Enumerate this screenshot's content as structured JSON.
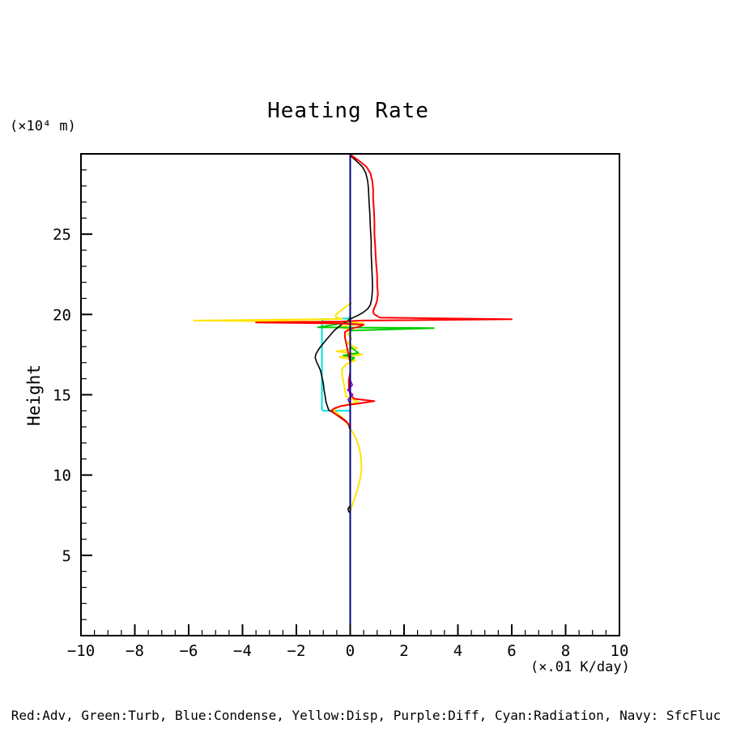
{
  "labels": {
    "title": "Heating Rate",
    "y_unit": "(×10⁴ m)",
    "x_unit": "(×.01 K/day)",
    "ylabel": "Height",
    "legend": "Red:Adv, Green:Turb, Blue:Condense, Yellow:Disp, Purple:Diff, Cyan:Radiation, Navy: SfcFluc"
  },
  "chart_data": {
    "type": "line",
    "title": "Heating Rate",
    "xlabel": "(×.01 K/day)",
    "ylabel": "Height",
    "y_unit": "(×10⁴ m)",
    "xlim": [
      -10,
      10
    ],
    "ylim": [
      0,
      30
    ],
    "x_ticks": [
      -10,
      -8,
      -6,
      -4,
      -2,
      0,
      2,
      4,
      6,
      8,
      10
    ],
    "y_ticks": [
      5,
      10,
      15,
      20,
      25
    ],
    "x_minor_step": 0.5,
    "y_minor_step": 1,
    "grid": false,
    "orientation": "vertical-profile (x = heating rate value, y = height)",
    "legend_position": "bottom-text-line",
    "series": [
      {
        "name": "Radiation",
        "color": "#00e0e0",
        "width": 2,
        "points": [
          [
            0.0,
            19.75
          ],
          [
            -1.0,
            19.7
          ],
          [
            -1.05,
            19.6
          ],
          [
            -1.05,
            14.1
          ],
          [
            -1.0,
            14.0
          ],
          [
            0.0,
            14.0
          ]
        ]
      },
      {
        "name": "Disp",
        "color": "#ffe400",
        "width": 2,
        "points": [
          [
            0.05,
            20.7
          ],
          [
            -0.15,
            20.5
          ],
          [
            -0.3,
            20.3
          ],
          [
            -0.45,
            20.1
          ],
          [
            -0.55,
            19.95
          ],
          [
            -0.5,
            19.82
          ],
          [
            -0.3,
            19.72
          ],
          [
            -5.8,
            19.62
          ],
          [
            -0.3,
            19.55
          ],
          [
            0.5,
            19.45
          ],
          [
            0.1,
            19.35
          ],
          [
            -0.45,
            19.22
          ],
          [
            0.1,
            19.05
          ],
          [
            -0.1,
            18.8
          ],
          [
            0.05,
            18.5
          ],
          [
            -0.1,
            18.2
          ],
          [
            0.25,
            17.9
          ],
          [
            -0.5,
            17.7
          ],
          [
            0.45,
            17.5
          ],
          [
            -0.4,
            17.35
          ],
          [
            0.2,
            17.15
          ],
          [
            -0.15,
            16.9
          ],
          [
            -0.3,
            16.6
          ],
          [
            -0.3,
            16.2
          ],
          [
            -0.25,
            15.8
          ],
          [
            -0.2,
            15.3
          ],
          [
            -0.15,
            14.9
          ],
          [
            0.1,
            14.7
          ],
          [
            0.3,
            14.55
          ],
          [
            -0.1,
            14.4
          ],
          [
            -0.5,
            14.2
          ],
          [
            -0.6,
            14.0
          ],
          [
            -0.45,
            13.8
          ],
          [
            -0.25,
            13.5
          ],
          [
            -0.1,
            13.2
          ],
          [
            0.0,
            12.9
          ],
          [
            0.15,
            12.5
          ],
          [
            0.28,
            12.0
          ],
          [
            0.36,
            11.5
          ],
          [
            0.4,
            11.0
          ],
          [
            0.42,
            10.5
          ],
          [
            0.4,
            10.0
          ],
          [
            0.33,
            9.5
          ],
          [
            0.25,
            9.0
          ],
          [
            0.15,
            8.5
          ],
          [
            0.05,
            8.0
          ],
          [
            0.0,
            7.7
          ]
        ]
      },
      {
        "name": "Turb",
        "color": "#00cc00",
        "width": 2,
        "points": [
          [
            0.0,
            19.9
          ],
          [
            -0.1,
            19.5
          ],
          [
            -1.2,
            19.2
          ],
          [
            3.1,
            19.15
          ],
          [
            0.0,
            19.0
          ],
          [
            0.0,
            18.0
          ],
          [
            0.3,
            17.6
          ],
          [
            -0.25,
            17.45
          ],
          [
            0.15,
            17.3
          ],
          [
            0.0,
            17.1
          ],
          [
            0.0,
            16.5
          ]
        ]
      },
      {
        "name": "Unlabeled-Black",
        "color": "#000000",
        "width": 1.6,
        "points": [
          [
            0.0,
            29.9
          ],
          [
            0.2,
            29.6
          ],
          [
            0.45,
            29.2
          ],
          [
            0.58,
            28.8
          ],
          [
            0.65,
            28.3
          ],
          [
            0.68,
            27.8
          ],
          [
            0.7,
            27.0
          ],
          [
            0.73,
            26.2
          ],
          [
            0.75,
            25.4
          ],
          [
            0.78,
            24.6
          ],
          [
            0.78,
            23.8
          ],
          [
            0.8,
            23.0
          ],
          [
            0.82,
            22.2
          ],
          [
            0.83,
            21.6
          ],
          [
            0.8,
            21.0
          ],
          [
            0.75,
            20.6
          ],
          [
            0.65,
            20.35
          ],
          [
            0.5,
            20.15
          ],
          [
            0.3,
            19.95
          ],
          [
            0.1,
            19.8
          ],
          [
            -0.1,
            19.6
          ],
          [
            -0.3,
            19.4
          ],
          [
            -0.45,
            19.2
          ],
          [
            -0.6,
            19.0
          ],
          [
            -0.72,
            18.75
          ],
          [
            -0.85,
            18.5
          ],
          [
            -1.0,
            18.2
          ],
          [
            -1.12,
            17.95
          ],
          [
            -1.2,
            17.75
          ],
          [
            -1.28,
            17.5
          ],
          [
            -1.3,
            17.3
          ],
          [
            -1.25,
            17.05
          ],
          [
            -1.18,
            16.8
          ],
          [
            -1.1,
            16.5
          ],
          [
            -1.05,
            16.1
          ],
          [
            -1.0,
            15.7
          ],
          [
            -0.97,
            15.3
          ],
          [
            -0.93,
            14.9
          ],
          [
            -0.9,
            14.55
          ],
          [
            -0.85,
            14.3
          ],
          [
            -0.8,
            14.05
          ],
          [
            -0.6,
            13.85
          ],
          [
            -0.35,
            13.6
          ],
          [
            -0.15,
            13.35
          ],
          [
            -0.05,
            13.1
          ],
          [
            0.0,
            12.8
          ],
          [
            0.0,
            8.1
          ],
          [
            -0.08,
            7.9
          ],
          [
            -0.05,
            7.7
          ]
        ]
      },
      {
        "name": "Adv",
        "color": "#ff0000",
        "width": 2,
        "points": [
          [
            0.05,
            29.9
          ],
          [
            0.3,
            29.6
          ],
          [
            0.6,
            29.2
          ],
          [
            0.75,
            28.8
          ],
          [
            0.82,
            28.3
          ],
          [
            0.85,
            27.8
          ],
          [
            0.85,
            27.2
          ],
          [
            0.88,
            26.5
          ],
          [
            0.9,
            25.8
          ],
          [
            0.9,
            25.0
          ],
          [
            0.93,
            24.2
          ],
          [
            0.95,
            23.5
          ],
          [
            0.97,
            23.0
          ],
          [
            1.0,
            22.4
          ],
          [
            1.0,
            21.8
          ],
          [
            1.03,
            21.3
          ],
          [
            1.0,
            20.9
          ],
          [
            0.95,
            20.6
          ],
          [
            0.88,
            20.35
          ],
          [
            0.85,
            20.15
          ],
          [
            0.9,
            20.0
          ],
          [
            1.0,
            19.9
          ],
          [
            1.1,
            19.8
          ],
          [
            6.0,
            19.7
          ],
          [
            0.4,
            19.62
          ],
          [
            -0.3,
            19.56
          ],
          [
            -3.5,
            19.5
          ],
          [
            -0.4,
            19.44
          ],
          [
            0.5,
            19.36
          ],
          [
            0.35,
            19.25
          ],
          [
            0.0,
            19.1
          ],
          [
            -0.2,
            18.9
          ],
          [
            -0.2,
            18.6
          ],
          [
            -0.15,
            18.2
          ],
          [
            -0.1,
            17.8
          ],
          [
            -0.05,
            17.4
          ],
          [
            0.0,
            17.0
          ],
          [
            0.0,
            16.4
          ],
          [
            -0.05,
            15.9
          ],
          [
            -0.05,
            15.4
          ],
          [
            0.0,
            15.0
          ],
          [
            0.15,
            14.75
          ],
          [
            0.9,
            14.6
          ],
          [
            0.3,
            14.45
          ],
          [
            -0.35,
            14.3
          ],
          [
            -0.6,
            14.15
          ],
          [
            -0.7,
            14.0
          ],
          [
            -0.55,
            13.8
          ],
          [
            -0.3,
            13.5
          ],
          [
            -0.1,
            13.25
          ],
          [
            0.0,
            13.0
          ]
        ]
      },
      {
        "name": "Diff",
        "color": "#9900cc",
        "width": 1.6,
        "points": [
          [
            0.0,
            15.9
          ],
          [
            0.08,
            15.6
          ],
          [
            -0.1,
            15.3
          ],
          [
            0.1,
            15.0
          ],
          [
            -0.08,
            14.7
          ],
          [
            0.0,
            14.4
          ]
        ]
      },
      {
        "name": "Condense",
        "color": "#0000ff",
        "width": 1.8,
        "points": [
          [
            0.0,
            0.0
          ],
          [
            0.0,
            30.0
          ]
        ]
      },
      {
        "name": "SfcFluc",
        "color": "#000080",
        "width": 1.8,
        "points": [
          [
            0.0,
            0.0
          ],
          [
            0.0,
            30.0
          ]
        ]
      }
    ]
  }
}
